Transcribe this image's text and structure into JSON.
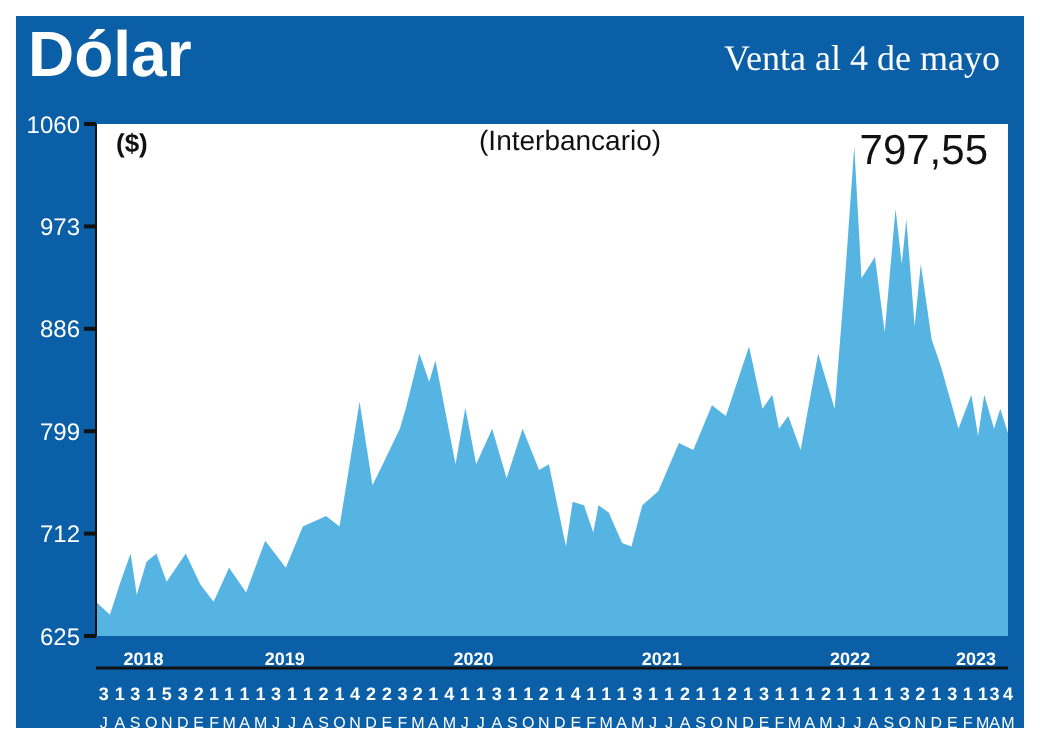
{
  "chart_data": {
    "type": "area",
    "title": "Dólar",
    "subtitle": "Venta al 4 de mayo",
    "ylabel": "($)",
    "annotations": [
      "(Interbancario)",
      "797,55"
    ],
    "x": [
      "2018-07-01",
      "2018-07-28",
      "2018-08-16",
      "2018-09-06",
      "2018-09-18",
      "2018-10-07",
      "2018-10-26",
      "2018-11-15",
      "2018-12-22",
      "2019-01-19",
      "2019-02-14",
      "2019-03-16",
      "2019-04-18",
      "2019-05-25",
      "2019-07-04",
      "2019-08-06",
      "2019-09-20",
      "2019-10-16",
      "2019-10-28",
      "2019-11-24",
      "2019-12-19",
      "2020-01-08",
      "2020-02-10",
      "2020-02-22",
      "2020-03-19",
      "2020-04-07",
      "2020-04-19",
      "2020-05-28",
      "2020-06-16",
      "2020-07-07",
      "2020-08-07",
      "2020-09-04",
      "2020-10-05",
      "2020-11-06",
      "2020-11-25",
      "2020-12-28",
      "2021-01-10",
      "2021-02-01",
      "2021-02-19",
      "2021-03-01",
      "2021-03-21",
      "2021-04-16",
      "2021-05-04",
      "2021-05-25",
      "2021-06-25",
      "2021-08-04",
      "2021-09-01",
      "2021-10-07",
      "2021-11-03",
      "2021-12-18",
      "2022-01-13",
      "2022-02-01",
      "2022-02-14",
      "2022-03-04",
      "2022-03-28",
      "2022-05-01",
      "2022-06-02",
      "2022-06-22",
      "2022-07-10",
      "2022-07-24",
      "2022-08-19",
      "2022-09-07",
      "2022-09-28",
      "2022-10-10",
      "2022-10-19",
      "2022-11-04",
      "2022-11-16",
      "2022-12-07",
      "2022-12-25",
      "2023-01-28",
      "2023-02-22",
      "2023-03-07",
      "2023-03-19",
      "2023-04-07",
      "2023-04-19",
      "2023-05-04"
    ],
    "series": [
      {
        "color": "#56b4e3",
        "values": [
          654,
          643,
          669,
          695,
          660,
          688,
          695,
          671,
          695,
          669,
          654,
          683,
          662,
          706,
          683,
          718,
          727,
          718,
          750,
          824,
          753,
          771,
          801,
          819,
          865,
          841,
          859,
          771,
          819,
          771,
          801,
          759,
          801,
          766,
          771,
          701,
          739,
          736,
          713,
          736,
          730,
          704,
          701,
          736,
          748,
          789,
          783,
          821,
          812,
          871,
          818,
          830,
          801,
          812,
          783,
          865,
          818,
          929,
          1041,
          929,
          947,
          883,
          988,
          941,
          979,
          888,
          941,
          877,
          854,
          801,
          830,
          795,
          830,
          801,
          818,
          797.55
        ]
      }
    ],
    "xlim": [
      "2018-07-01",
      "2023-05-04"
    ],
    "xticks": [
      {
        "value": "2018-10-01",
        "label": "2018"
      },
      {
        "value": "2019-07-02",
        "label": "2019"
      },
      {
        "value": "2020-07-02",
        "label": "2020"
      },
      {
        "value": "2021-07-02",
        "label": "2021"
      },
      {
        "value": "2022-07-02",
        "label": "2022"
      },
      {
        "value": "2023-03-03",
        "label": "2023"
      }
    ],
    "x2lim": [
      "2018-07-01",
      "2023-05-04"
    ],
    "x2ticks": [
      {
        "value": "2018-07-16",
        "label": "3\nJ"
      },
      {
        "value": "2018-08-16",
        "label": "1\nA"
      },
      {
        "value": "2018-09-15",
        "label": "3\nS"
      },
      {
        "value": "2018-10-16",
        "label": "1\nO"
      },
      {
        "value": "2018-11-15",
        "label": "5\nN"
      },
      {
        "value": "2018-12-16",
        "label": "3\nD"
      },
      {
        "value": "2019-01-16",
        "label": "2\nE"
      },
      {
        "value": "2019-02-15",
        "label": "1\nF"
      },
      {
        "value": "2019-03-16",
        "label": "1\nM"
      },
      {
        "value": "2019-04-15",
        "label": "1\nA"
      },
      {
        "value": "2019-05-16",
        "label": "1\nM"
      },
      {
        "value": "2019-06-15",
        "label": "3\nJ"
      },
      {
        "value": "2019-07-16",
        "label": "1\nJ"
      },
      {
        "value": "2019-08-16",
        "label": "1\nA"
      },
      {
        "value": "2019-09-15",
        "label": "2\nS"
      },
      {
        "value": "2019-10-16",
        "label": "1\nO"
      },
      {
        "value": "2019-11-15",
        "label": "4\nN"
      },
      {
        "value": "2019-12-16",
        "label": "2\nD"
      },
      {
        "value": "2020-01-16",
        "label": "2\nE"
      },
      {
        "value": "2020-02-15",
        "label": "3\nF"
      },
      {
        "value": "2020-03-16",
        "label": "2\nM"
      },
      {
        "value": "2020-04-15",
        "label": "1\nA"
      },
      {
        "value": "2020-05-16",
        "label": "4\nM"
      },
      {
        "value": "2020-06-15",
        "label": "1\nJ"
      },
      {
        "value": "2020-07-16",
        "label": "1\nJ"
      },
      {
        "value": "2020-08-16",
        "label": "3\nA"
      },
      {
        "value": "2020-09-15",
        "label": "1\nS"
      },
      {
        "value": "2020-10-16",
        "label": "1\nO"
      },
      {
        "value": "2020-11-15",
        "label": "2\nN"
      },
      {
        "value": "2020-12-16",
        "label": "1\nD"
      },
      {
        "value": "2021-01-16",
        "label": "4\nE"
      },
      {
        "value": "2021-02-15",
        "label": "1\nF"
      },
      {
        "value": "2021-03-16",
        "label": "1\nM"
      },
      {
        "value": "2021-04-15",
        "label": "1\nA"
      },
      {
        "value": "2021-05-16",
        "label": "3\nM"
      },
      {
        "value": "2021-06-15",
        "label": "1\nJ"
      },
      {
        "value": "2021-07-16",
        "label": "1\nJ"
      },
      {
        "value": "2021-08-16",
        "label": "2\nA"
      },
      {
        "value": "2021-09-15",
        "label": "1\nS"
      },
      {
        "value": "2021-10-16",
        "label": "1\nO"
      },
      {
        "value": "2021-11-15",
        "label": "2\nN"
      },
      {
        "value": "2021-12-16",
        "label": "1\nD"
      },
      {
        "value": "2022-01-16",
        "label": "3\nE"
      },
      {
        "value": "2022-02-15",
        "label": "1\nF"
      },
      {
        "value": "2022-03-16",
        "label": "1\nM"
      },
      {
        "value": "2022-04-15",
        "label": "1\nA"
      },
      {
        "value": "2022-05-16",
        "label": "2\nM"
      },
      {
        "value": "2022-06-15",
        "label": "1\nJ"
      },
      {
        "value": "2022-07-16",
        "label": "1\nJ"
      },
      {
        "value": "2022-08-16",
        "label": "1\nA"
      },
      {
        "value": "2022-09-15",
        "label": "1\nS"
      },
      {
        "value": "2022-10-16",
        "label": "3\nO"
      },
      {
        "value": "2022-11-15",
        "label": "2\nN"
      },
      {
        "value": "2022-12-16",
        "label": "1\nD"
      },
      {
        "value": "2023-01-16",
        "label": "3\nE"
      },
      {
        "value": "2023-02-15",
        "label": "1\nF"
      },
      {
        "value": "2023-03-16",
        "label": "1\nM"
      },
      {
        "value": "2023-04-08",
        "label": "3\nA"
      },
      {
        "value": "2023-05-04",
        "label": "4\nM"
      }
    ],
    "ylim": [
      625,
      1060
    ],
    "yticks": [
      625,
      712,
      799,
      886,
      973,
      1060
    ],
    "grid": false,
    "legend": false
  }
}
